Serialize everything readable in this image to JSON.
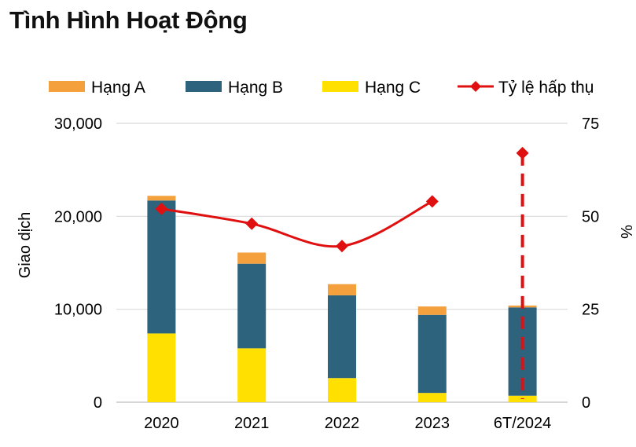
{
  "title": "Tình Hình Hoạt Động",
  "chart_data": {
    "type": "bar",
    "stacked": true,
    "categories": [
      "2020",
      "2021",
      "2022",
      "2023",
      "6T/2024"
    ],
    "series": [
      {
        "name": "Hạng C",
        "color": "#FFE000",
        "values": [
          7400,
          5800,
          2600,
          1000,
          700
        ]
      },
      {
        "name": "Hạng B",
        "color": "#2E637E",
        "values": [
          14300,
          9100,
          8900,
          8400,
          9500
        ]
      },
      {
        "name": "Hạng A",
        "color": "#F4A03C",
        "values": [
          500,
          1200,
          1200,
          900,
          200
        ]
      }
    ],
    "line_series": {
      "name": "Tỷ lệ hấp thụ",
      "color": "#E01010",
      "values": [
        52,
        48,
        42,
        54,
        67
      ],
      "axis": "right",
      "dashed_last": true
    },
    "ylabel": "Giao dịch",
    "ylabel_right": "%",
    "ylim": [
      0,
      30000
    ],
    "ylim_right": [
      0,
      75
    ],
    "yticks": [
      "0",
      "10,000",
      "20,000",
      "30,000"
    ],
    "yticks_right": [
      "0",
      "25",
      "50",
      "75"
    ],
    "legend": [
      "Hạng A",
      "Hạng B",
      "Hạng C",
      "Tỷ lệ hấp thụ"
    ],
    "legend_position": "top",
    "grid": true
  }
}
